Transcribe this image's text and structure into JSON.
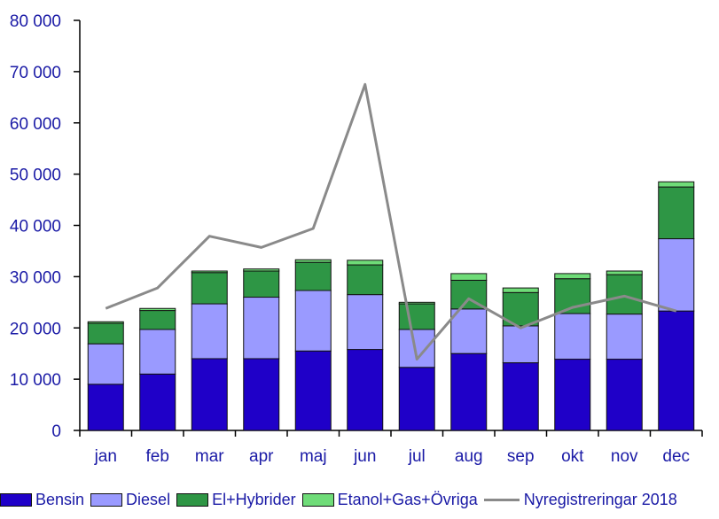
{
  "chart_data": {
    "type": "bar",
    "stacked": true,
    "categories": [
      "jan",
      "feb",
      "mar",
      "apr",
      "maj",
      "jun",
      "jul",
      "aug",
      "sep",
      "okt",
      "nov",
      "dec"
    ],
    "series": [
      {
        "name": "Bensin",
        "color": "#1f00c8",
        "values": [
          9000,
          11000,
          14000,
          14000,
          15500,
          15800,
          12300,
          15000,
          13200,
          13900,
          13900,
          23300
        ]
      },
      {
        "name": "Diesel",
        "color": "#9a9aff",
        "values": [
          7900,
          8700,
          10700,
          12000,
          11800,
          10700,
          7400,
          8700,
          7200,
          8900,
          8800,
          14100
        ]
      },
      {
        "name": "El+Hybrider",
        "color": "#2e9645",
        "values": [
          4000,
          3700,
          6100,
          5100,
          5500,
          5800,
          5000,
          5600,
          6500,
          6800,
          7700,
          10100
        ]
      },
      {
        "name": "Etanol+Gas+Övriga",
        "color": "#6fdc78",
        "values": [
          300,
          400,
          300,
          400,
          500,
          900,
          300,
          1300,
          900,
          1000,
          700,
          1000
        ]
      }
    ],
    "line_series": {
      "name": "Nyregistreringar 2018",
      "color": "#8a8a8a",
      "values": [
        23800,
        27800,
        37900,
        35700,
        39400,
        67500,
        13900,
        25700,
        20000,
        24000,
        26200,
        23300
      ]
    },
    "ylim": [
      0,
      80000
    ],
    "yticks": [
      0,
      10000,
      20000,
      30000,
      40000,
      50000,
      60000,
      70000,
      80000
    ],
    "ytick_labels": [
      "0",
      "10 000",
      "20 000",
      "30 000",
      "40 000",
      "50 000",
      "60 000",
      "70 000",
      "80 000"
    ],
    "legend_position": "bottom",
    "grid": false
  }
}
